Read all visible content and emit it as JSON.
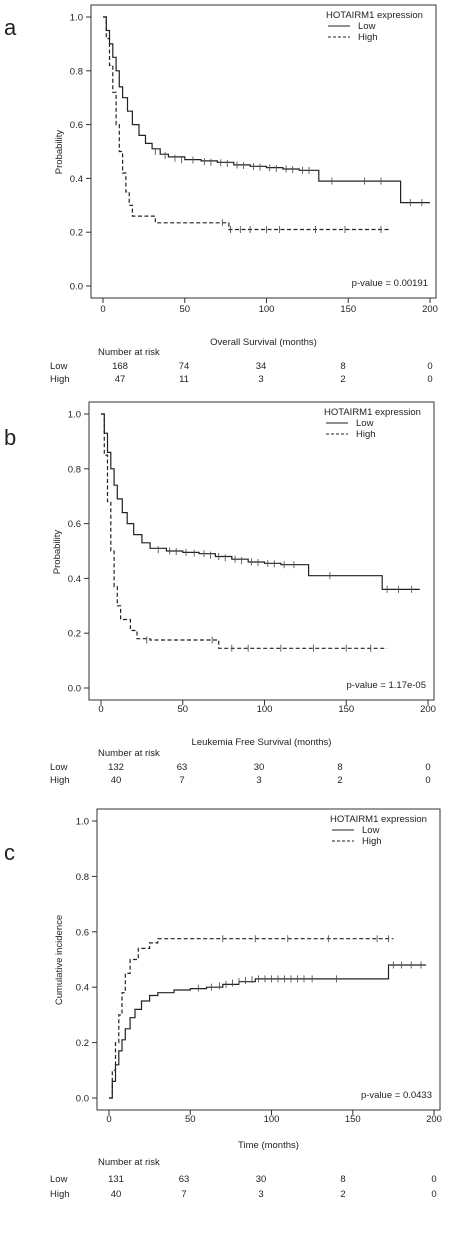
{
  "chart_data": [
    {
      "panel": "a",
      "type": "line",
      "ylabel": "Probability",
      "xlabel": "Overall Survival (months)",
      "legend_title": "HOTAIRM1 expression",
      "legend_placement": "top-right",
      "pvalue": "p-value = 0.00191",
      "xlim": [
        0,
        200
      ],
      "ylim": [
        0,
        1
      ],
      "xticks": [
        0,
        50,
        100,
        150,
        200
      ],
      "yticks": [
        "0.0",
        "0.2",
        "0.4",
        "0.6",
        "0.8",
        "1.0"
      ],
      "series": [
        {
          "name": "Low",
          "dash": "solid",
          "points": [
            [
              0,
              1.0
            ],
            [
              2,
              0.95
            ],
            [
              4,
              0.9
            ],
            [
              6,
              0.85
            ],
            [
              8,
              0.8
            ],
            [
              10,
              0.74
            ],
            [
              12,
              0.7
            ],
            [
              15,
              0.65
            ],
            [
              18,
              0.6
            ],
            [
              22,
              0.56
            ],
            [
              26,
              0.53
            ],
            [
              30,
              0.51
            ],
            [
              35,
              0.49
            ],
            [
              40,
              0.48
            ],
            [
              50,
              0.47
            ],
            [
              60,
              0.465
            ],
            [
              70,
              0.46
            ],
            [
              80,
              0.45
            ],
            [
              90,
              0.445
            ],
            [
              100,
              0.44
            ],
            [
              110,
              0.435
            ],
            [
              120,
              0.43
            ],
            [
              130,
              0.43
            ],
            [
              132,
              0.39
            ],
            [
              150,
              0.39
            ],
            [
              180,
              0.39
            ],
            [
              182,
              0.31
            ],
            [
              200,
              0.31
            ]
          ],
          "censors": [
            [
              32,
              0.5
            ],
            [
              38,
              0.485
            ],
            [
              44,
              0.475
            ],
            [
              48,
              0.47
            ],
            [
              55,
              0.468
            ],
            [
              62,
              0.462
            ],
            [
              66,
              0.46
            ],
            [
              72,
              0.458
            ],
            [
              76,
              0.455
            ],
            [
              82,
              0.45
            ],
            [
              86,
              0.448
            ],
            [
              92,
              0.444
            ],
            [
              96,
              0.442
            ],
            [
              102,
              0.44
            ],
            [
              106,
              0.437
            ],
            [
              112,
              0.435
            ],
            [
              116,
              0.433
            ],
            [
              122,
              0.43
            ],
            [
              126,
              0.43
            ],
            [
              140,
              0.39
            ],
            [
              160,
              0.39
            ],
            [
              170,
              0.39
            ],
            [
              188,
              0.31
            ],
            [
              195,
              0.31
            ]
          ]
        },
        {
          "name": "High",
          "dash": "dashed",
          "points": [
            [
              0,
              1.0
            ],
            [
              2,
              0.92
            ],
            [
              4,
              0.82
            ],
            [
              6,
              0.72
            ],
            [
              8,
              0.6
            ],
            [
              10,
              0.5
            ],
            [
              12,
              0.42
            ],
            [
              14,
              0.35
            ],
            [
              16,
              0.3
            ],
            [
              18,
              0.26
            ],
            [
              30,
              0.26
            ],
            [
              32,
              0.235
            ],
            [
              75,
              0.235
            ],
            [
              77,
              0.21
            ],
            [
              175,
              0.21
            ]
          ],
          "censors": [
            [
              73,
              0.235
            ],
            [
              78,
              0.21
            ],
            [
              84,
              0.21
            ],
            [
              90,
              0.21
            ],
            [
              100,
              0.21
            ],
            [
              108,
              0.21
            ],
            [
              130,
              0.21
            ],
            [
              148,
              0.21
            ],
            [
              170,
              0.21
            ]
          ]
        }
      ],
      "risk_table": {
        "header": "Number at risk",
        "rows": [
          {
            "label": "Low",
            "values": [
              "168",
              "74",
              "34",
              "8",
              "0"
            ]
          },
          {
            "label": "High",
            "values": [
              "47",
              "11",
              "3",
              "2",
              "0"
            ]
          }
        ]
      }
    },
    {
      "panel": "b",
      "type": "line",
      "ylabel": "Probability",
      "xlabel": "Leukemia Free Survival (months)",
      "legend_title": "HOTAIRM1 expression",
      "legend_placement": "top-right",
      "pvalue": "p-value = 1.17e-05",
      "xlim": [
        0,
        200
      ],
      "ylim": [
        0,
        1
      ],
      "xticks": [
        0,
        50,
        100,
        150,
        200
      ],
      "yticks": [
        "0.0",
        "0.2",
        "0.4",
        "0.6",
        "0.8",
        "1.0"
      ],
      "series": [
        {
          "name": "Low",
          "dash": "solid",
          "points": [
            [
              0,
              1.0
            ],
            [
              2,
              0.93
            ],
            [
              4,
              0.86
            ],
            [
              6,
              0.8
            ],
            [
              8,
              0.74
            ],
            [
              10,
              0.69
            ],
            [
              13,
              0.64
            ],
            [
              16,
              0.6
            ],
            [
              20,
              0.56
            ],
            [
              25,
              0.53
            ],
            [
              30,
              0.51
            ],
            [
              40,
              0.5
            ],
            [
              50,
              0.495
            ],
            [
              60,
              0.49
            ],
            [
              70,
              0.48
            ],
            [
              80,
              0.47
            ],
            [
              90,
              0.46
            ],
            [
              100,
              0.455
            ],
            [
              110,
              0.45
            ],
            [
              125,
              0.45
            ],
            [
              127,
              0.41
            ],
            [
              170,
              0.41
            ],
            [
              172,
              0.36
            ],
            [
              195,
              0.36
            ]
          ],
          "censors": [
            [
              35,
              0.505
            ],
            [
              42,
              0.5
            ],
            [
              46,
              0.498
            ],
            [
              52,
              0.495
            ],
            [
              57,
              0.492
            ],
            [
              63,
              0.49
            ],
            [
              67,
              0.485
            ],
            [
              72,
              0.48
            ],
            [
              76,
              0.475
            ],
            [
              82,
              0.47
            ],
            [
              86,
              0.465
            ],
            [
              92,
              0.46
            ],
            [
              96,
              0.458
            ],
            [
              102,
              0.455
            ],
            [
              106,
              0.453
            ],
            [
              112,
              0.45
            ],
            [
              118,
              0.45
            ],
            [
              140,
              0.41
            ],
            [
              175,
              0.36
            ],
            [
              182,
              0.36
            ],
            [
              190,
              0.36
            ]
          ]
        },
        {
          "name": "High",
          "dash": "dashed",
          "points": [
            [
              0,
              1.0
            ],
            [
              2,
              0.85
            ],
            [
              4,
              0.68
            ],
            [
              6,
              0.5
            ],
            [
              8,
              0.37
            ],
            [
              10,
              0.3
            ],
            [
              12,
              0.25
            ],
            [
              18,
              0.21
            ],
            [
              22,
              0.18
            ],
            [
              30,
              0.175
            ],
            [
              70,
              0.175
            ],
            [
              72,
              0.145
            ],
            [
              175,
              0.145
            ]
          ],
          "censors": [
            [
              28,
              0.175
            ],
            [
              68,
              0.175
            ],
            [
              80,
              0.145
            ],
            [
              90,
              0.145
            ],
            [
              110,
              0.145
            ],
            [
              130,
              0.145
            ],
            [
              150,
              0.145
            ],
            [
              165,
              0.145
            ]
          ]
        }
      ],
      "risk_table": {
        "header": "Number at risk",
        "rows": [
          {
            "label": "Low",
            "values": [
              "132",
              "63",
              "30",
              "8",
              "0"
            ]
          },
          {
            "label": "High",
            "values": [
              "40",
              "7",
              "3",
              "2",
              "0"
            ]
          }
        ]
      }
    },
    {
      "panel": "c",
      "type": "line",
      "ylabel": "Cumulative incidence",
      "xlabel": "Time (months)",
      "legend_title": "HOTAIRM1 expression",
      "legend_placement": "top-right",
      "pvalue": "p-value = 0.0433",
      "xlim": [
        0,
        200
      ],
      "ylim": [
        0,
        1
      ],
      "xticks": [
        0,
        50,
        100,
        150,
        200
      ],
      "yticks": [
        "0.0",
        "0.2",
        "0.4",
        "0.6",
        "0.8",
        "1.0"
      ],
      "series": [
        {
          "name": "Low",
          "dash": "solid",
          "points": [
            [
              0,
              0.0
            ],
            [
              2,
              0.06
            ],
            [
              4,
              0.12
            ],
            [
              6,
              0.17
            ],
            [
              8,
              0.21
            ],
            [
              10,
              0.25
            ],
            [
              13,
              0.29
            ],
            [
              16,
              0.32
            ],
            [
              20,
              0.35
            ],
            [
              25,
              0.37
            ],
            [
              30,
              0.38
            ],
            [
              40,
              0.39
            ],
            [
              50,
              0.395
            ],
            [
              60,
              0.4
            ],
            [
              70,
              0.41
            ],
            [
              80,
              0.42
            ],
            [
              90,
              0.43
            ],
            [
              100,
              0.43
            ],
            [
              170,
              0.43
            ],
            [
              172,
              0.48
            ],
            [
              195,
              0.48
            ]
          ],
          "censors": [
            [
              55,
              0.397
            ],
            [
              63,
              0.4
            ],
            [
              68,
              0.405
            ],
            [
              72,
              0.41
            ],
            [
              76,
              0.415
            ],
            [
              80,
              0.42
            ],
            [
              84,
              0.424
            ],
            [
              88,
              0.428
            ],
            [
              92,
              0.43
            ],
            [
              96,
              0.43
            ],
            [
              100,
              0.43
            ],
            [
              104,
              0.43
            ],
            [
              108,
              0.43
            ],
            [
              112,
              0.43
            ],
            [
              116,
              0.43
            ],
            [
              120,
              0.43
            ],
            [
              125,
              0.43
            ],
            [
              140,
              0.43
            ],
            [
              175,
              0.48
            ],
            [
              180,
              0.48
            ],
            [
              186,
              0.48
            ],
            [
              192,
              0.48
            ]
          ]
        },
        {
          "name": "High",
          "dash": "dashed",
          "points": [
            [
              0,
              0.0
            ],
            [
              2,
              0.1
            ],
            [
              4,
              0.2
            ],
            [
              6,
              0.3
            ],
            [
              8,
              0.38
            ],
            [
              10,
              0.45
            ],
            [
              13,
              0.5
            ],
            [
              18,
              0.54
            ],
            [
              25,
              0.56
            ],
            [
              30,
              0.575
            ],
            [
              175,
              0.575
            ]
          ],
          "censors": [
            [
              70,
              0.575
            ],
            [
              90,
              0.575
            ],
            [
              110,
              0.575
            ],
            [
              135,
              0.575
            ],
            [
              165,
              0.575
            ],
            [
              172,
              0.575
            ]
          ]
        }
      ],
      "risk_table": {
        "header": "Number at risk",
        "rows": [
          {
            "label": "Low",
            "values": [
              "131",
              "63",
              "30",
              "8",
              "0"
            ]
          },
          {
            "label": "High",
            "values": [
              "40",
              "7",
              "3",
              "2",
              "0"
            ]
          }
        ]
      }
    }
  ]
}
